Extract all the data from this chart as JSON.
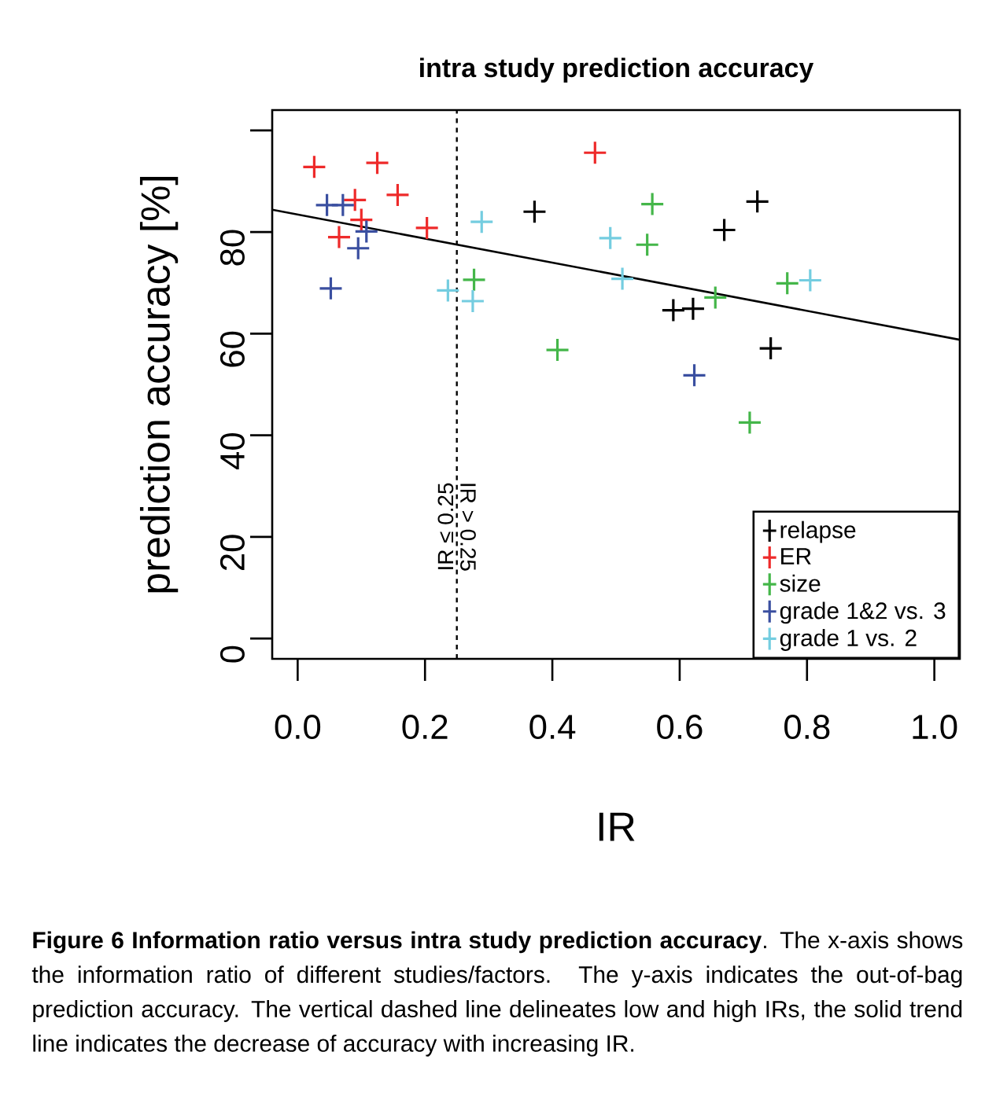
{
  "chart_data": {
    "type": "scatter",
    "title": "intra study prediction accuracy",
    "xlabel": "IR",
    "ylabel": "prediction accuracy [%]",
    "xlim": [
      -0.04,
      1.04
    ],
    "ylim": [
      -4,
      104
    ],
    "xticks": [
      {
        "value": 0,
        "label": "0.0"
      },
      {
        "value": 0.2,
        "label": "0.2"
      },
      {
        "value": 0.4,
        "label": "0.4"
      },
      {
        "value": 0.6,
        "label": "0.6"
      },
      {
        "value": 0.8,
        "label": "0.8"
      },
      {
        "value": 1,
        "label": "1.0"
      }
    ],
    "yticks": [
      0,
      20,
      40,
      60,
      80,
      {
        "value": 100,
        "label": null
      }
    ],
    "grid": false,
    "legend": "bottom right",
    "marker": "cross",
    "series": [
      {
        "name": "relapse",
        "color": "#000000",
        "x": [
          0.372,
          0.722,
          0.67,
          0.59,
          0.621,
          0.743
        ],
        "values": [
          84.0,
          86.0,
          80.4,
          64.6,
          64.9,
          57.1
        ]
      },
      {
        "name": "ER",
        "color": "#ee2a2a",
        "x": [
          0.026,
          0.125,
          0.09,
          0.157,
          0.1,
          0.065,
          0.203,
          0.467
        ],
        "values": [
          92.8,
          93.6,
          86.3,
          87.3,
          82.4,
          79.0,
          80.8,
          95.6
        ]
      },
      {
        "name": "size",
        "color": "#44b649",
        "x": [
          0.277,
          0.408,
          0.557,
          0.549,
          0.656,
          0.769,
          0.71
        ],
        "values": [
          70.6,
          56.8,
          85.5,
          77.5,
          67.1,
          69.9,
          42.5
        ]
      },
      {
        "name": "grade 1&2 vs. 3",
        "color": "#3a4fa0",
        "x": [
          0.046,
          0.071,
          0.108,
          0.095,
          0.052,
          0.623
        ],
        "values": [
          85.3,
          85.3,
          80.1,
          76.8,
          68.9,
          51.8
        ]
      },
      {
        "name": "grade 1 vs. 2",
        "color": "#74cde0",
        "x": [
          0.289,
          0.236,
          0.275,
          0.491,
          0.51,
          0.805
        ],
        "values": [
          82.0,
          68.5,
          66.4,
          78.8,
          70.8,
          70.5
        ]
      },
      {
        "type": "line",
        "marker": "none",
        "color": "#000000",
        "x": [
          -0.04,
          1.04
        ],
        "values": [
          84.4,
          58.8
        ]
      }
    ],
    "ref_lines": [
      {
        "axis": "x",
        "value": 0.25,
        "label": "IR ≤ 0.25",
        "line_style": "dashed",
        "color": "#000000"
      }
    ],
    "annotations": [
      {
        "text": "IR > 0.25",
        "x": 0.25,
        "y": 22
      },
      "**Figure 6 Information ratio versus intra study prediction accuracy**. The x-axis shows the information ratio of different studies/factors. The y-axis indicates the out-of-bag prediction accuracy. The vertical dashed line delineates low and high IRs, the solid trend line indicates the decrease of accuracy with increasing IR."
    ]
  }
}
